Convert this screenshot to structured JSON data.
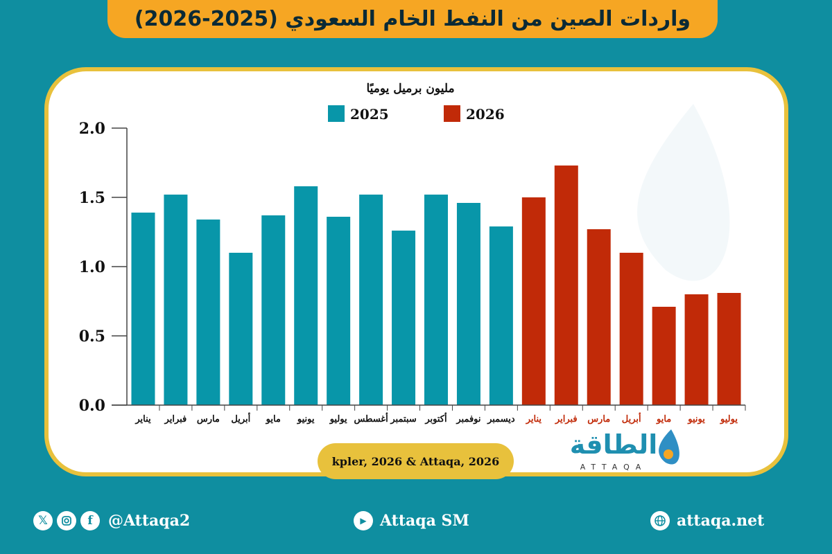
{
  "header": {
    "title": "واردات الصين من النفط الخام السعودي (2025-2026)"
  },
  "chart_data": {
    "type": "bar",
    "unit_label": "مليون برميل يوميًا",
    "ylim": [
      0,
      2
    ],
    "yticks": [
      "0.0",
      "0.5",
      "1.0",
      "1.5",
      "2.0"
    ],
    "legend": [
      {
        "name": "2025",
        "color": "#0896a9"
      },
      {
        "name": "2026",
        "color": "#c12a08"
      }
    ],
    "series": [
      {
        "name": "2025",
        "color": "#0896a9",
        "categories": [
          "يناير",
          "فبراير",
          "مارس",
          "أبريل",
          "مايو",
          "يونيو",
          "يوليو",
          "أغسطس",
          "سبتمبر",
          "أكتوبر",
          "نوفمبر",
          "ديسمبر"
        ],
        "values": [
          1.39,
          1.52,
          1.34,
          1.1,
          1.37,
          1.58,
          1.36,
          1.52,
          1.26,
          1.52,
          1.46,
          1.29
        ]
      },
      {
        "name": "2026",
        "color": "#c12a08",
        "categories": [
          "يناير",
          "فبراير",
          "مارس",
          "أبريل",
          "مايو",
          "يونيو",
          "يوليو"
        ],
        "values": [
          1.5,
          1.73,
          1.27,
          1.1,
          0.71,
          0.8,
          0.81
        ]
      }
    ]
  },
  "source": {
    "text": "kpler, 2026 & Attaqa, 2026"
  },
  "logo": {
    "arabic": "الطاقة",
    "latin": "ATTAQA"
  },
  "footer": {
    "social_handle": "@Attaqa2",
    "youtube": "Attaqa SM",
    "website": "attaqa.net",
    "icons": [
      "x-icon",
      "instagram-icon",
      "facebook-icon",
      "youtube-icon",
      "globe-icon"
    ]
  }
}
